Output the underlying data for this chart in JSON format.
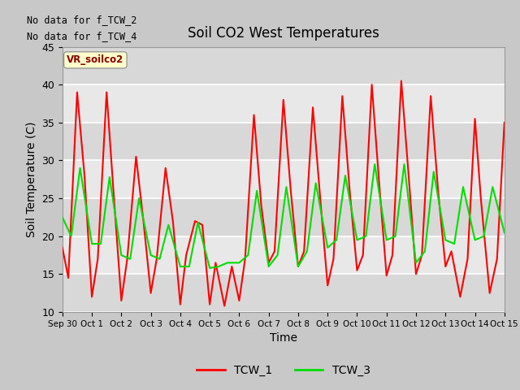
{
  "title": "Soil CO2 West Temperatures",
  "xlabel": "Time",
  "ylabel": "Soil Temperature (C)",
  "ylim": [
    10,
    45
  ],
  "no_data_text": [
    "No data for f_TCW_2",
    "No data for f_TCW_4"
  ],
  "vr_label": "VR_soilco2",
  "xtick_labels": [
    "Sep 30",
    "Oct 1",
    "Oct 2",
    "Oct 3",
    "Oct 4",
    "Oct 5",
    "Oct 6",
    "Oct 7",
    "Oct 8",
    "Oct 9",
    "Oct 10",
    "Oct 11",
    "Oct 12",
    "Oct 13",
    "Oct 14",
    "Oct 15"
  ],
  "tcw1_color": "#ff0000",
  "tcw3_color": "#00dd00",
  "legend_entries": [
    "TCW_1",
    "TCW_3"
  ],
  "tcw1_x": [
    0.0,
    0.2,
    0.5,
    0.75,
    1.0,
    1.2,
    1.5,
    1.75,
    2.0,
    2.2,
    2.5,
    2.75,
    3.0,
    3.2,
    3.5,
    3.75,
    4.0,
    4.2,
    4.5,
    4.75,
    5.0,
    5.2,
    5.5,
    5.75,
    6.0,
    6.2,
    6.5,
    6.75,
    7.0,
    7.2,
    7.5,
    7.75,
    8.0,
    8.2,
    8.5,
    8.75,
    9.0,
    9.2,
    9.5,
    9.75,
    10.0,
    10.2,
    10.5,
    10.75,
    11.0,
    11.2,
    11.5,
    11.75,
    12.0,
    12.2,
    12.5,
    12.75,
    13.0,
    13.2,
    13.5,
    13.75,
    14.0,
    14.2,
    14.5,
    14.75,
    15.0
  ],
  "tcw1_y": [
    18.5,
    14.5,
    39.0,
    28.0,
    12.0,
    17.0,
    39.0,
    25.0,
    11.5,
    17.0,
    30.5,
    22.0,
    12.5,
    17.0,
    29.0,
    22.0,
    11.0,
    17.5,
    22.0,
    21.5,
    11.0,
    16.5,
    10.8,
    16.0,
    11.5,
    17.0,
    36.0,
    24.0,
    16.5,
    18.0,
    38.0,
    26.0,
    16.0,
    18.0,
    37.0,
    25.0,
    13.5,
    17.0,
    38.5,
    26.0,
    15.5,
    17.5,
    40.0,
    27.0,
    14.8,
    17.5,
    40.5,
    28.0,
    15.0,
    17.5,
    38.5,
    26.0,
    16.0,
    18.0,
    12.0,
    17.0,
    35.5,
    25.0,
    12.5,
    17.0,
    35.0
  ],
  "tcw3_x": [
    0.0,
    0.3,
    0.6,
    1.0,
    1.3,
    1.6,
    2.0,
    2.3,
    2.6,
    3.0,
    3.3,
    3.6,
    4.0,
    4.3,
    4.6,
    5.0,
    5.3,
    5.6,
    6.0,
    6.3,
    6.6,
    7.0,
    7.3,
    7.6,
    8.0,
    8.3,
    8.6,
    9.0,
    9.3,
    9.6,
    10.0,
    10.3,
    10.6,
    11.0,
    11.3,
    11.6,
    12.0,
    12.3,
    12.6,
    13.0,
    13.3,
    13.6,
    14.0,
    14.3,
    14.6,
    15.0
  ],
  "tcw3_y": [
    22.5,
    20.0,
    29.0,
    19.0,
    19.0,
    27.8,
    17.5,
    17.0,
    25.0,
    17.5,
    17.0,
    21.5,
    16.0,
    16.0,
    21.8,
    15.8,
    16.0,
    16.5,
    16.5,
    17.5,
    26.0,
    16.0,
    17.5,
    26.5,
    16.0,
    18.0,
    27.0,
    18.5,
    19.5,
    28.0,
    19.5,
    20.0,
    29.5,
    19.5,
    20.0,
    29.5,
    16.5,
    18.0,
    28.5,
    19.5,
    19.0,
    26.5,
    19.5,
    20.0,
    26.5,
    20.5
  ],
  "fig_width": 6.4,
  "fig_height": 4.8,
  "dpi": 100
}
